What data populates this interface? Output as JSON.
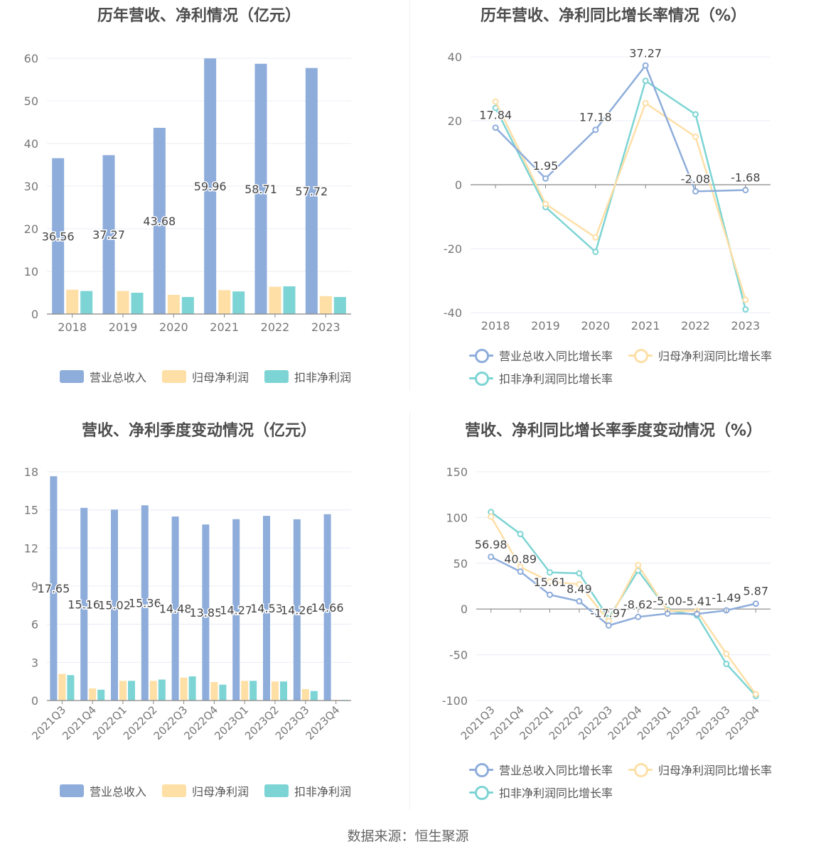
{
  "colors": {
    "revenue": "#8eaddb",
    "netprofit": "#fedfa6",
    "deducted": "#7dd4d4"
  },
  "footer": "数据来源：恒生聚源",
  "legend_bar": [
    "营业总收入",
    "归母净利润",
    "扣非净利润"
  ],
  "legend_line": [
    "营业总收入同比增长率",
    "归母净利润同比增长率",
    "扣非净利润同比增长率"
  ],
  "chart_data": [
    {
      "type": "bar",
      "title": "历年营收、净利情况（亿元）",
      "categories": [
        "2018",
        "2019",
        "2020",
        "2021",
        "2022",
        "2023"
      ],
      "ylim": [
        0,
        60
      ],
      "yticks": [
        0,
        10,
        20,
        30,
        40,
        50,
        60
      ],
      "series": [
        {
          "name": "营业总收入",
          "values": [
            36.56,
            37.27,
            43.68,
            59.96,
            58.71,
            57.72
          ],
          "labels": [
            "36.56",
            "37.27",
            "43.68",
            "59.96",
            "58.71",
            "57.72"
          ]
        },
        {
          "name": "归母净利润",
          "values": [
            5.7,
            5.4,
            4.5,
            5.6,
            6.4,
            4.2
          ]
        },
        {
          "name": "扣非净利润",
          "values": [
            5.4,
            5.0,
            4.0,
            5.3,
            6.5,
            4.0
          ]
        }
      ],
      "legend": "bottom",
      "grid": true
    },
    {
      "type": "line",
      "title": "历年营收、净利同比增长率情况（%）",
      "categories": [
        "2018",
        "2019",
        "2020",
        "2021",
        "2022",
        "2023"
      ],
      "ylim": [
        -40,
        40
      ],
      "yticks": [
        -40,
        -20,
        0,
        20,
        40
      ],
      "series": [
        {
          "name": "营业总收入同比增长率",
          "values": [
            17.84,
            1.95,
            17.18,
            37.27,
            -2.08,
            -1.68
          ],
          "labels": [
            "17.84",
            "1.95",
            "17.18",
            "37.27",
            "-2.08",
            "-1.68"
          ]
        },
        {
          "name": "归母净利润同比增长率",
          "values": [
            26.0,
            -6.0,
            -16.5,
            25.5,
            15.0,
            -36.0
          ]
        },
        {
          "name": "扣非净利润同比增长率",
          "values": [
            24.0,
            -7.0,
            -21.0,
            32.5,
            22.0,
            -39.0
          ]
        }
      ],
      "legend": "bottom",
      "grid": true
    },
    {
      "type": "bar",
      "title": "营收、净利季度变动情况（亿元）",
      "categories": [
        "2021Q3",
        "2021Q4",
        "2022Q1",
        "2022Q2",
        "2022Q3",
        "2022Q4",
        "2023Q1",
        "2023Q2",
        "2023Q3",
        "2023Q4"
      ],
      "ylim": [
        0,
        18
      ],
      "yticks": [
        0,
        3,
        6,
        9,
        12,
        15,
        18
      ],
      "series": [
        {
          "name": "营业总收入",
          "values": [
            17.65,
            15.16,
            15.02,
            15.36,
            14.48,
            13.85,
            14.27,
            14.53,
            14.26,
            14.66
          ],
          "labels": [
            "17.65",
            "15.16",
            "15.02",
            "15.36",
            "14.48",
            "13.85",
            "14.27",
            "14.53",
            "14.26",
            "14.66"
          ]
        },
        {
          "name": "归母净利润",
          "values": [
            2.1,
            0.95,
            1.55,
            1.55,
            1.8,
            1.45,
            1.55,
            1.5,
            0.9,
            0.05
          ]
        },
        {
          "name": "扣非净利润",
          "values": [
            2.0,
            0.85,
            1.55,
            1.65,
            1.9,
            1.25,
            1.55,
            1.5,
            0.75,
            0.05
          ]
        }
      ],
      "legend": "bottom",
      "grid": true
    },
    {
      "type": "line",
      "title": "营收、净利同比增长率季度变动情况（%）",
      "categories": [
        "2021Q3",
        "2021Q4",
        "2022Q1",
        "2022Q2",
        "2022Q3",
        "2022Q4",
        "2023Q1",
        "2023Q2",
        "2023Q3",
        "2023Q4"
      ],
      "ylim": [
        -100,
        150
      ],
      "yticks": [
        -100,
        -50,
        0,
        50,
        100,
        150
      ],
      "series": [
        {
          "name": "营业总收入同比增长率",
          "values": [
            56.98,
            40.89,
            15.61,
            8.49,
            -17.97,
            -8.62,
            -5.0,
            -5.41,
            -1.49,
            5.87
          ],
          "labels": [
            "56.98",
            "40.89",
            "15.61",
            "8.49",
            "-17.97",
            "-8.62",
            "-5.00",
            "-5.41",
            "-1.49",
            "5.87"
          ]
        },
        {
          "name": "归母净利润同比增长率",
          "values": [
            101,
            46,
            30,
            27,
            -13,
            48,
            -2,
            -2,
            -49,
            -93
          ]
        },
        {
          "name": "扣非净利润同比增长率",
          "values": [
            106,
            82,
            40,
            39,
            -10,
            42,
            -1,
            -7,
            -60,
            -95
          ]
        }
      ],
      "legend": "bottom",
      "grid": true
    }
  ]
}
